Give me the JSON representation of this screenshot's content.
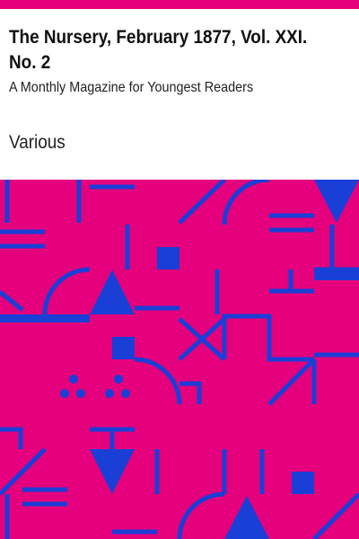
{
  "cover": {
    "title": "The Nursery, February 1877, Vol. XXI. No. 2",
    "subtitle": "A Monthly Magazine for Youngest Readers",
    "author": "Various"
  },
  "colors": {
    "accent": "#e5007d",
    "pattern_shapes": "#1a3fd6",
    "background": "#ffffff"
  }
}
